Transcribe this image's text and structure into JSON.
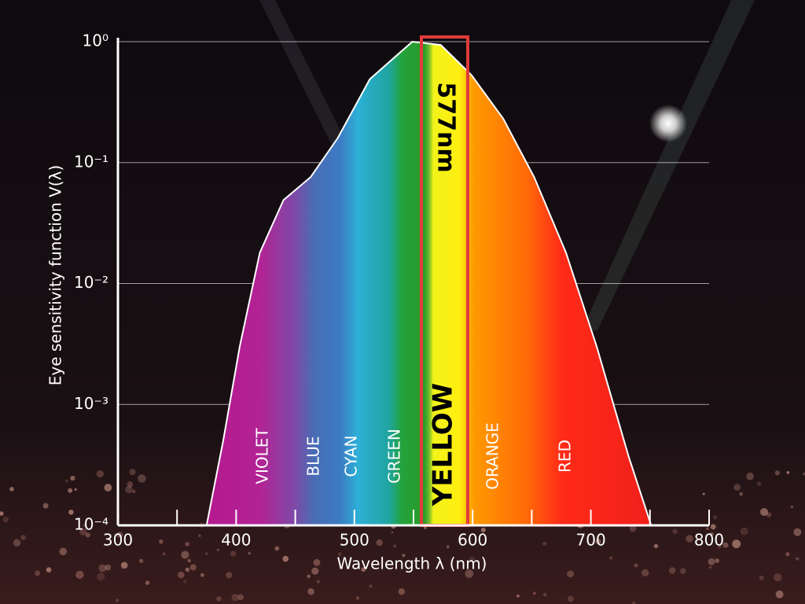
{
  "chart_data": {
    "type": "area",
    "x_label": "Wavelength λ (nm)",
    "y_label": "Eye sensitivity function V(λ)",
    "x": [
      375,
      389,
      403,
      420,
      440,
      463,
      486,
      513,
      549,
      573,
      599,
      626,
      652,
      679,
      705,
      732,
      751
    ],
    "series": [
      {
        "values": [
          0.0001,
          0.0005,
          0.003,
          0.018,
          0.049,
          0.076,
          0.16,
          0.49,
          1.0,
          0.94,
          0.53,
          0.23,
          0.076,
          0.018,
          0.003,
          0.00037,
          0.0001
        ]
      }
    ],
    "xlim": [
      300,
      800
    ],
    "xticks": [
      300,
      400,
      500,
      600,
      700,
      800
    ],
    "xminorticks": [
      350,
      450,
      550,
      650,
      750
    ],
    "ylim": [
      0.0001,
      1
    ],
    "ylog": true,
    "yticks": [
      {
        "value": 1,
        "label": "10⁰"
      },
      {
        "value": 0.1,
        "label": "10⁻¹"
      },
      {
        "value": 0.01,
        "label": "10⁻²"
      },
      {
        "value": 0.001,
        "label": "10⁻³"
      },
      {
        "value": 0.0001,
        "label": "10⁻⁴"
      }
    ],
    "grid": true,
    "bands": [
      "VIOLET",
      "BLUE",
      "CYAN",
      "GREEN",
      "YELLOW",
      "ORANGE",
      "RED"
    ],
    "highlight": "577nm"
  }
}
